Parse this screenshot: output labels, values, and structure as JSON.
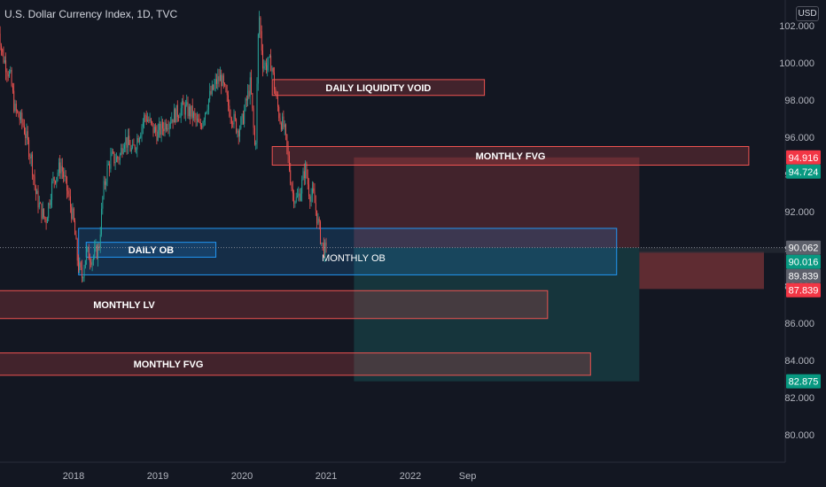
{
  "header": {
    "title": "U.S. Dollar Currency Index, 1D, TVC",
    "currency_button": "USD"
  },
  "colors": {
    "background": "#131722",
    "up": "#26a69a",
    "down": "#ef5350",
    "zone_red": "#ef5350",
    "zone_blue": "#2196f3",
    "badge_red": "#f23645",
    "badge_green": "#089981",
    "badge_gray": "#5d606b"
  },
  "chart_data": {
    "type": "candlestick",
    "symbol": "U.S. Dollar Currency Index",
    "interval": "1D",
    "source": "TVC",
    "ylim": [
      78.5,
      103.5
    ],
    "y_ticks": [
      "80.000",
      "82.000",
      "84.000",
      "86.000",
      "88.000",
      "90.000",
      "92.000",
      "94.000",
      "96.000",
      "98.000",
      "100.000",
      "102.000"
    ],
    "x_ticks": [
      "2018",
      "2019",
      "2020",
      "2021",
      "2022",
      "Sep"
    ],
    "price_path": [
      [
        2017.1,
        102.3
      ],
      [
        2017.15,
        100.5
      ],
      [
        2017.25,
        99.2
      ],
      [
        2017.3,
        97.5
      ],
      [
        2017.4,
        96.7
      ],
      [
        2017.5,
        94.8
      ],
      [
        2017.55,
        93.0
      ],
      [
        2017.6,
        92.2
      ],
      [
        2017.67,
        91.5
      ],
      [
        2017.75,
        93.6
      ],
      [
        2017.85,
        94.5
      ],
      [
        2017.92,
        93.2
      ],
      [
        2018.0,
        91.5
      ],
      [
        2018.05,
        89.2
      ],
      [
        2018.1,
        88.5
      ],
      [
        2018.15,
        89.8
      ],
      [
        2018.22,
        89.5
      ],
      [
        2018.3,
        90.0
      ],
      [
        2018.35,
        93.0
      ],
      [
        2018.4,
        94.3
      ],
      [
        2018.45,
        94.9
      ],
      [
        2018.5,
        94.8
      ],
      [
        2018.55,
        95.0
      ],
      [
        2018.6,
        96.0
      ],
      [
        2018.7,
        95.2
      ],
      [
        2018.8,
        96.5
      ],
      [
        2018.85,
        97.2
      ],
      [
        2018.95,
        96.4
      ],
      [
        2019.0,
        96.2
      ],
      [
        2019.1,
        96.8
      ],
      [
        2019.2,
        97.2
      ],
      [
        2019.3,
        97.6
      ],
      [
        2019.4,
        97.3
      ],
      [
        2019.5,
        96.5
      ],
      [
        2019.6,
        98.0
      ],
      [
        2019.7,
        99.0
      ],
      [
        2019.75,
        99.2
      ],
      [
        2019.85,
        97.5
      ],
      [
        2019.95,
        96.4
      ],
      [
        2020.0,
        96.8
      ],
      [
        2020.1,
        98.9
      ],
      [
        2020.16,
        95.0
      ],
      [
        2020.2,
        102.8
      ],
      [
        2020.25,
        99.9
      ],
      [
        2020.3,
        99.9
      ],
      [
        2020.35,
        100.0
      ],
      [
        2020.4,
        98.2
      ],
      [
        2020.45,
        97.0
      ],
      [
        2020.5,
        96.5
      ],
      [
        2020.55,
        94.8
      ],
      [
        2020.6,
        93.0
      ],
      [
        2020.65,
        92.6
      ],
      [
        2020.7,
        93.2
      ],
      [
        2020.75,
        94.4
      ],
      [
        2020.8,
        93.0
      ],
      [
        2020.85,
        92.8
      ],
      [
        2020.9,
        91.5
      ],
      [
        2020.95,
        90.2
      ],
      [
        2021.0,
        89.8
      ]
    ],
    "zones": [
      {
        "label": "DAILY LIQUIDITY VOID",
        "color": "red",
        "x0": 2020.36,
        "x1": 2022.88,
        "y0": 98.25,
        "y1": 99.1
      },
      {
        "label": "MONTHLY FVG",
        "color": "red",
        "x0": 2020.36,
        "x1": 2026.02,
        "y0": 94.5,
        "y1": 95.5
      },
      {
        "label": "MONTHLY OB",
        "color": "blue",
        "x0": 2018.06,
        "x1": 2024.45,
        "y0": 88.6,
        "y1": 91.1
      },
      {
        "label": "DAILY OB",
        "color": "blue",
        "x0": 2018.15,
        "x1": 2019.69,
        "y0": 89.55,
        "y1": 90.35
      },
      {
        "label": "MONTHLY LV",
        "color": "red",
        "x0": 2017.08,
        "x1": 2023.63,
        "y0": 86.25,
        "y1": 87.75
      },
      {
        "label": "MONTHLY FVG",
        "color": "red",
        "x0": 2017.08,
        "x1": 2024.14,
        "y0": 83.2,
        "y1": 84.4
      }
    ],
    "position": {
      "type": "short",
      "entry": 90.062,
      "stop": 94.916,
      "target": 82.875,
      "x0": 2021.33,
      "x1": 2024.72
    },
    "side_position": {
      "x0": 2024.72,
      "x1": 2026.2,
      "top": 89.839,
      "bottom": 87.839
    },
    "last_price_line": 90.062,
    "price_badges": [
      {
        "value": "94.916",
        "color": "red"
      },
      {
        "value": "94.724",
        "color": "green"
      },
      {
        "value": "90.062",
        "color": "gray"
      },
      {
        "value": "90.016",
        "color": "green"
      },
      {
        "value": "89.839",
        "color": "gray"
      },
      {
        "value": "87.839",
        "color": "red"
      },
      {
        "value": "82.875",
        "color": "green"
      }
    ]
  }
}
